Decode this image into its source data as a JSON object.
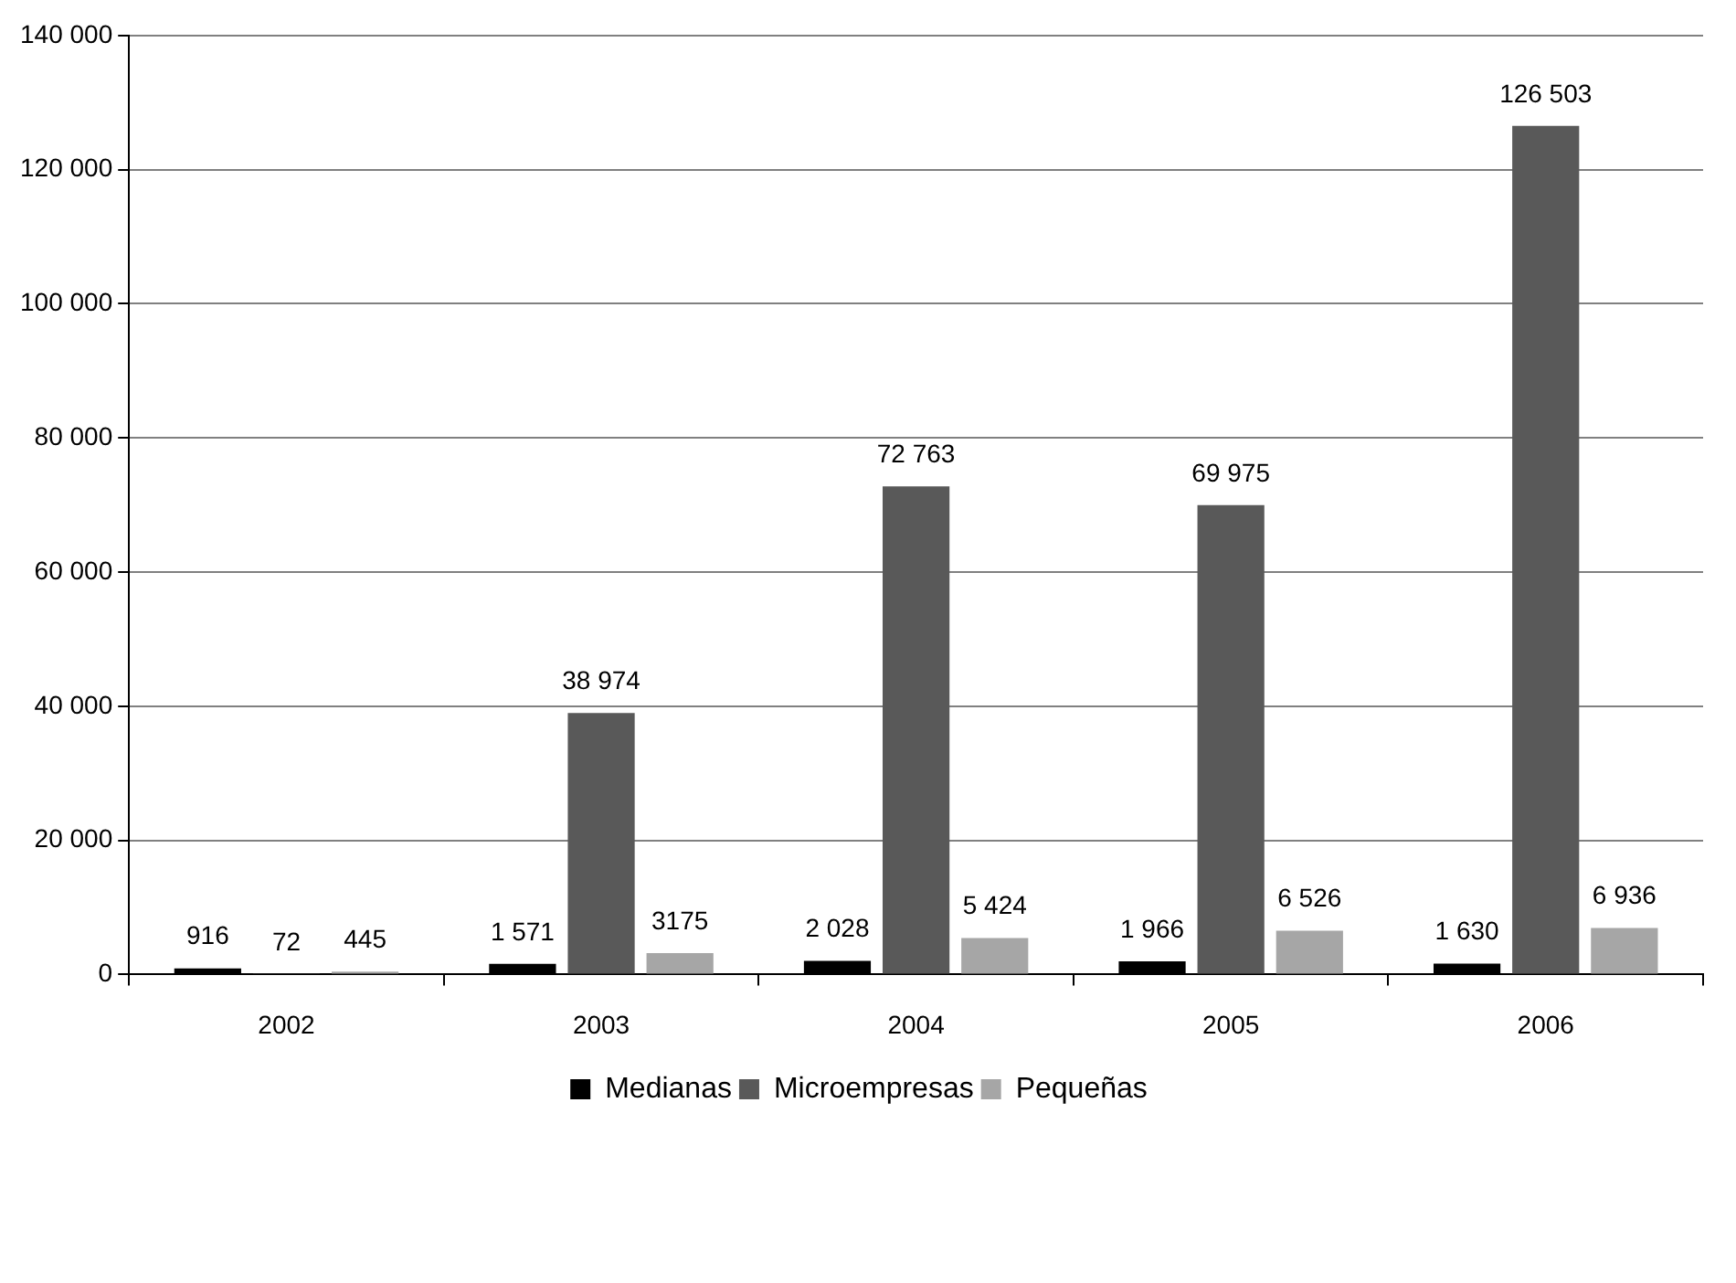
{
  "chart_data": {
    "type": "bar",
    "categories": [
      "2002",
      "2003",
      "2004",
      "2005",
      "2006"
    ],
    "series": [
      {
        "name": "Medianas",
        "color": "#000000",
        "values": [
          916,
          1571,
          2028,
          1966,
          1630
        ],
        "value_labels": [
          "916",
          "1 571",
          "2 028",
          "1 966",
          "1 630"
        ]
      },
      {
        "name": "Microempresas",
        "color": "#595959",
        "values": [
          72,
          38974,
          72763,
          69975,
          126503
        ],
        "value_labels": [
          "72",
          "38 974",
          "72 763",
          "69 975",
          "126 503"
        ]
      },
      {
        "name": "Pequeñas",
        "color": "#a6a6a6",
        "values": [
          445,
          3175,
          5424,
          6526,
          6936
        ],
        "value_labels": [
          "445",
          "3175",
          "5 424",
          "6 526",
          "6 936"
        ]
      }
    ],
    "ylim": [
      0,
      140000
    ],
    "yticks": [
      {
        "value": 0,
        "label": "0"
      },
      {
        "value": 20000,
        "label": "20 000"
      },
      {
        "value": 40000,
        "label": "40 000"
      },
      {
        "value": 60000,
        "label": "60 000"
      },
      {
        "value": 80000,
        "label": "80 000"
      },
      {
        "value": 100000,
        "label": "100 000"
      },
      {
        "value": 120000,
        "label": "120 000"
      },
      {
        "value": 140000,
        "label": "140 000"
      }
    ],
    "grid": "y",
    "legend": "bottom"
  }
}
